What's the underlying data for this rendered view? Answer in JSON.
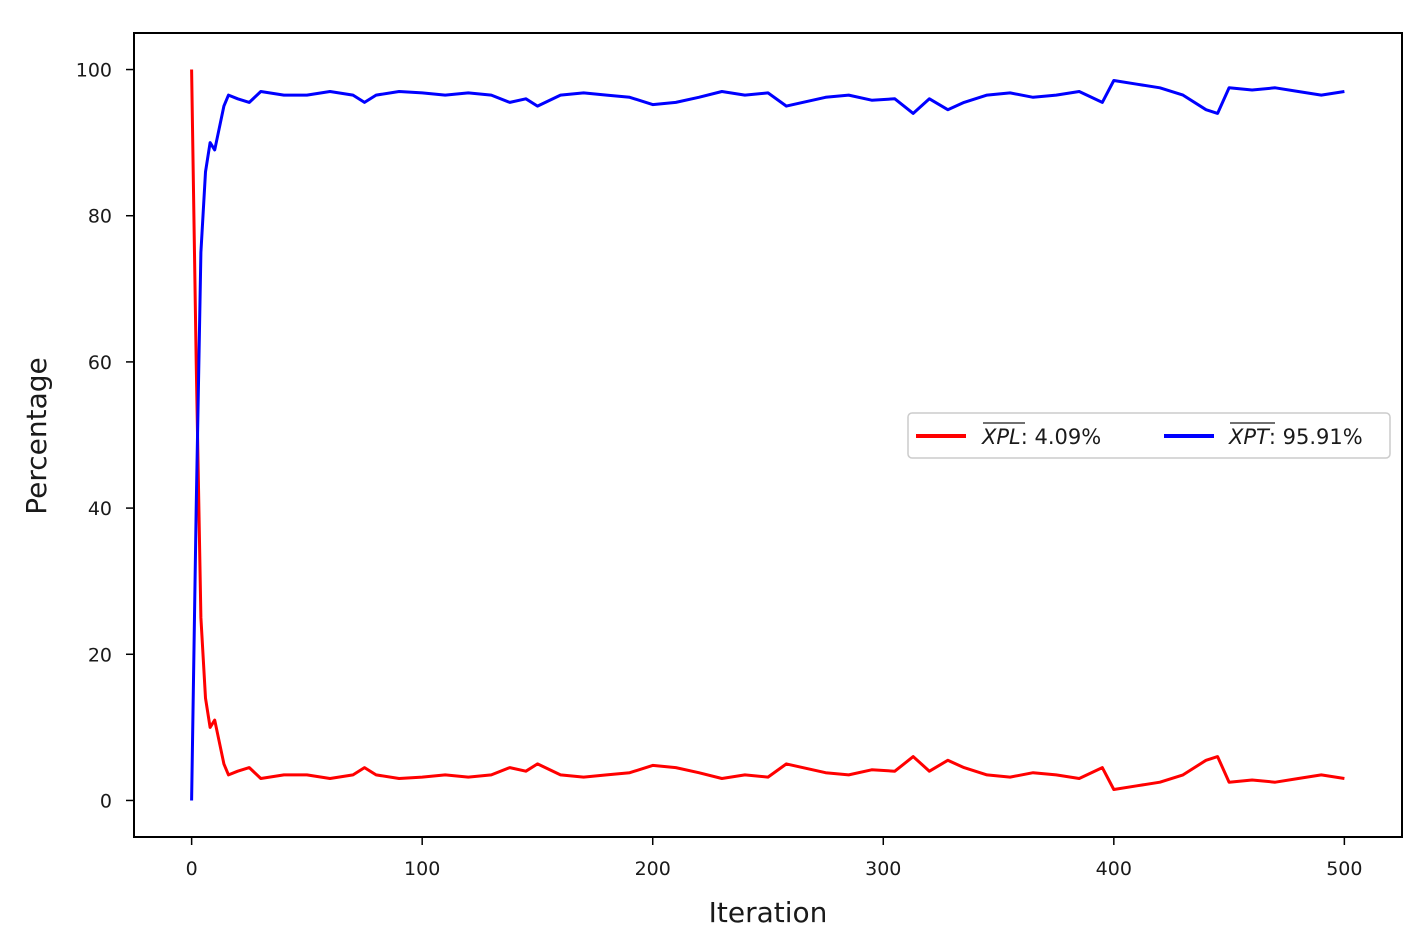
{
  "chart_data": {
    "type": "line",
    "title": "",
    "xlabel": "Iteration",
    "ylabel": "Percentage",
    "xlim": [
      -25,
      525
    ],
    "ylim": [
      -5,
      105
    ],
    "xticks": [
      0,
      100,
      200,
      300,
      400,
      500
    ],
    "yticks": [
      0,
      20,
      40,
      60,
      80,
      100
    ],
    "grid": false,
    "legend_location": "center-right",
    "series": [
      {
        "name_symbol": "XPL",
        "name_suffix": ": 4.09%",
        "color": "#ff0000",
        "x": [
          0,
          2,
          4,
          6,
          8,
          10,
          12,
          14,
          16,
          20,
          25,
          30,
          40,
          50,
          60,
          70,
          75,
          80,
          90,
          100,
          110,
          120,
          130,
          138,
          145,
          150,
          160,
          170,
          180,
          190,
          200,
          210,
          220,
          230,
          240,
          250,
          258,
          265,
          275,
          285,
          295,
          305,
          313,
          320,
          328,
          335,
          345,
          355,
          365,
          375,
          385,
          395,
          400,
          410,
          420,
          430,
          440,
          445,
          450,
          460,
          470,
          480,
          490,
          500
        ],
        "values": [
          100,
          60,
          25,
          14,
          10,
          11,
          8,
          5,
          3.5,
          4,
          4.5,
          3,
          3.5,
          3.5,
          3,
          3.5,
          4.5,
          3.5,
          3,
          3.2,
          3.5,
          3.2,
          3.5,
          4.5,
          4,
          5,
          3.5,
          3.2,
          3.5,
          3.8,
          4.8,
          4.5,
          3.8,
          3,
          3.5,
          3.2,
          5,
          4.5,
          3.8,
          3.5,
          4.2,
          4,
          6,
          4,
          5.5,
          4.5,
          3.5,
          3.2,
          3.8,
          3.5,
          3,
          4.5,
          1.5,
          2,
          2.5,
          3.5,
          5.5,
          6,
          2.5,
          2.8,
          2.5,
          3,
          3.5,
          3
        ]
      },
      {
        "name_symbol": "XPT",
        "name_suffix": ": 95.91%",
        "color": "#0000ff",
        "x": [
          0,
          2,
          4,
          6,
          8,
          10,
          12,
          14,
          16,
          20,
          25,
          30,
          40,
          50,
          60,
          70,
          75,
          80,
          90,
          100,
          110,
          120,
          130,
          138,
          145,
          150,
          160,
          170,
          180,
          190,
          200,
          210,
          220,
          230,
          240,
          250,
          258,
          265,
          275,
          285,
          295,
          305,
          313,
          320,
          328,
          335,
          345,
          355,
          365,
          375,
          385,
          395,
          400,
          410,
          420,
          430,
          440,
          445,
          450,
          460,
          470,
          480,
          490,
          500
        ],
        "values": [
          0,
          40,
          75,
          86,
          90,
          89,
          92,
          95,
          96.5,
          96,
          95.5,
          97,
          96.5,
          96.5,
          97,
          96.5,
          95.5,
          96.5,
          97,
          96.8,
          96.5,
          96.8,
          96.5,
          95.5,
          96,
          95,
          96.5,
          96.8,
          96.5,
          96.2,
          95.2,
          95.5,
          96.2,
          97,
          96.5,
          96.8,
          95,
          95.5,
          96.2,
          96.5,
          95.8,
          96,
          94,
          96,
          94.5,
          95.5,
          96.5,
          96.8,
          96.2,
          96.5,
          97,
          95.5,
          98.5,
          98,
          97.5,
          96.5,
          94.5,
          94,
          97.5,
          97.2,
          97.5,
          97,
          96.5,
          97
        ]
      }
    ]
  }
}
